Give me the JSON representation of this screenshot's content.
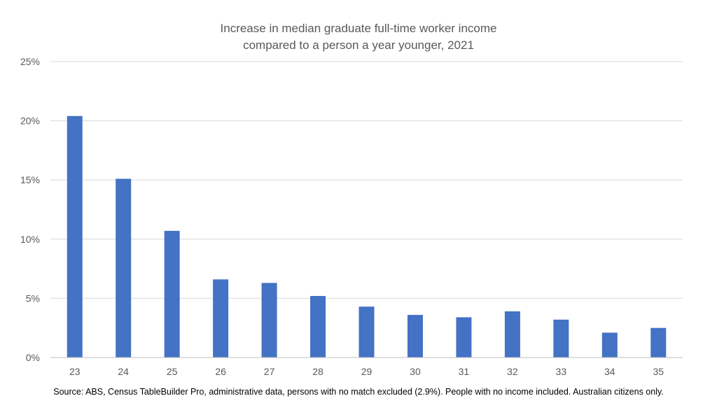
{
  "chart_data": {
    "type": "bar",
    "title_line1": "Increase in median graduate full-time worker income",
    "title_line2": "compared to a person a year younger, 2021",
    "xlabel": "",
    "ylabel": "",
    "categories": [
      "23",
      "24",
      "25",
      "26",
      "27",
      "28",
      "29",
      "30",
      "31",
      "32",
      "33",
      "34",
      "35"
    ],
    "values": [
      20.4,
      15.1,
      10.7,
      6.6,
      6.3,
      5.2,
      4.3,
      3.6,
      3.4,
      3.9,
      3.2,
      2.1,
      2.5
    ],
    "ylim": [
      0,
      25
    ],
    "yticks": [
      0,
      5,
      10,
      15,
      20,
      25
    ],
    "ytick_labels": [
      "0%",
      "5%",
      "10%",
      "15%",
      "20%",
      "25%"
    ],
    "grid": true,
    "legend": "none",
    "bar_color": "#4472C4",
    "grid_color": "#D9D9D9",
    "axis_color": "#BFBFBF",
    "source": "Source: ABS, Census TableBuilder Pro, administrative data, persons with no match excluded  (2.9%). People with no income included. Australian citizens only."
  }
}
